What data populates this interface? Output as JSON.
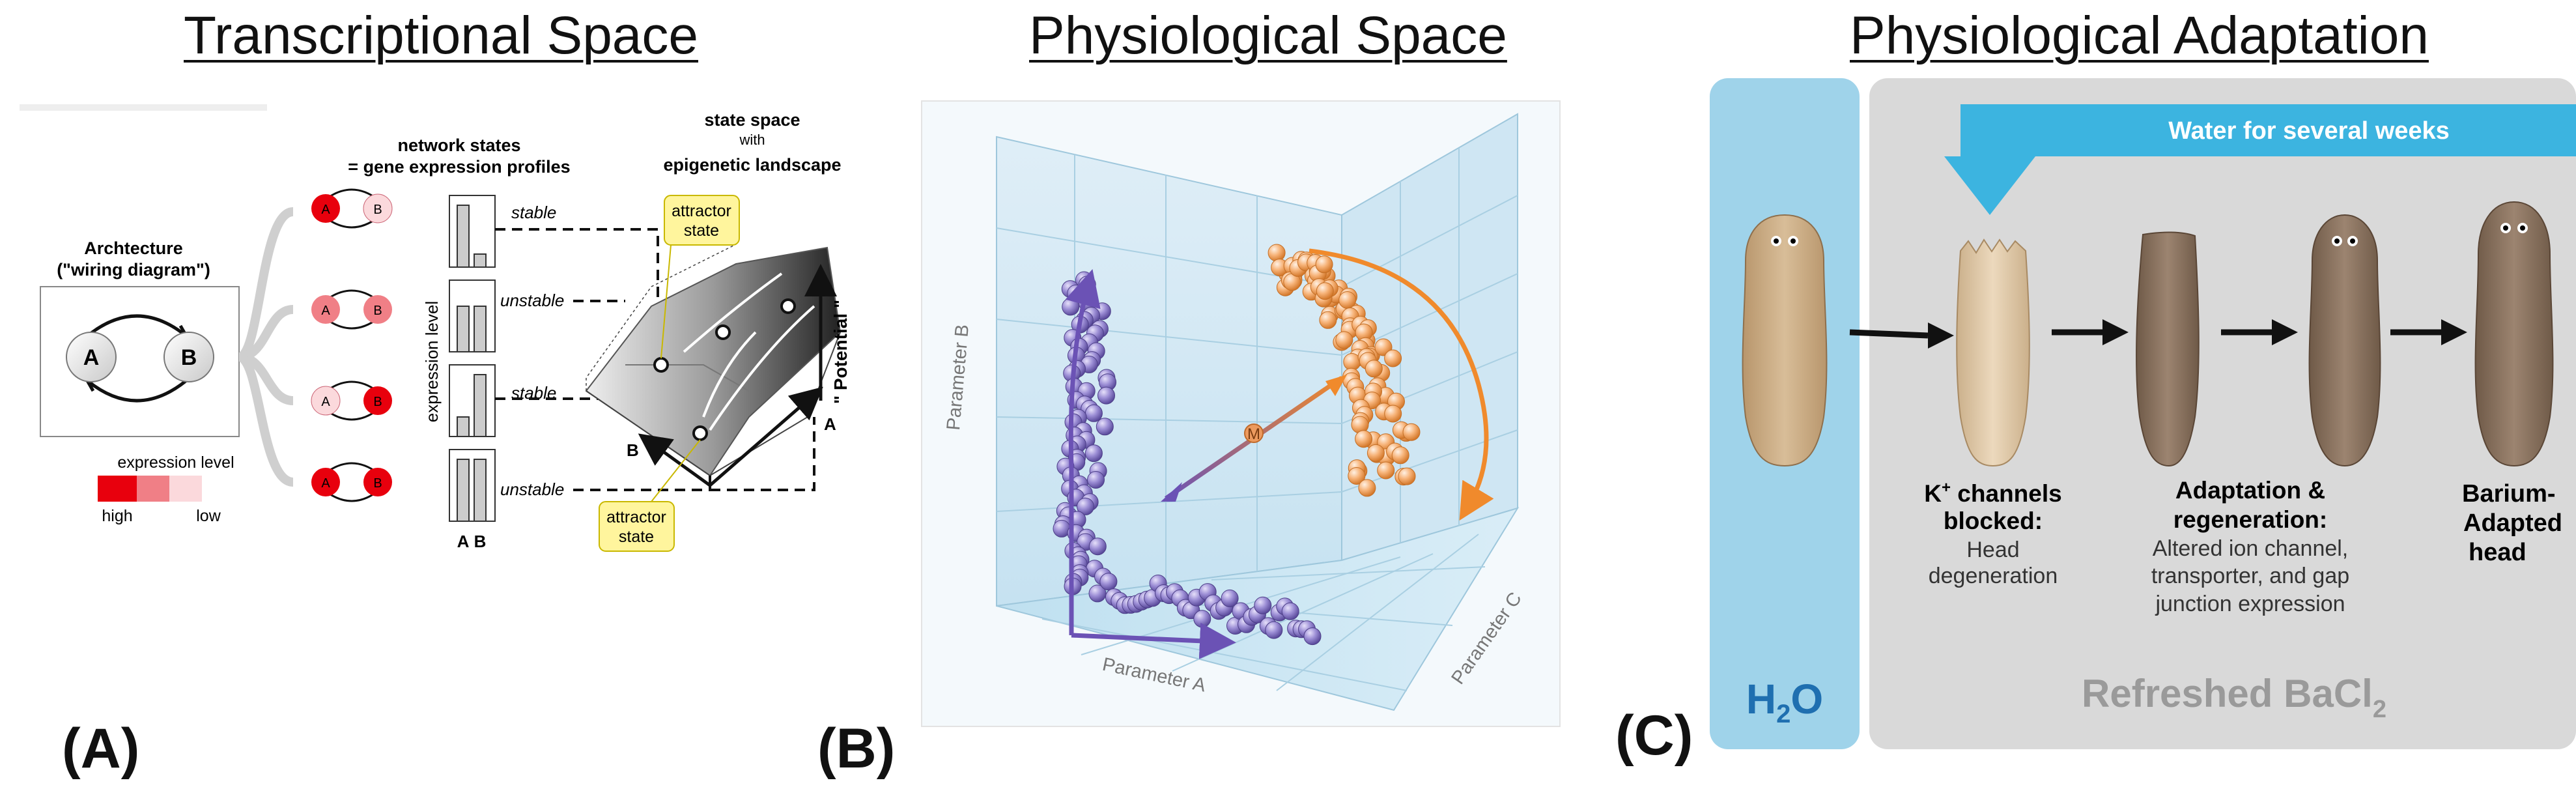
{
  "panel_a": {
    "title": "Transcriptional Space",
    "letter": "(A)",
    "architecture_label_1": "Archtecture",
    "architecture_label_2": "(\"wiring diagram\")",
    "node_a": "A",
    "node_b": "B",
    "network_states_1": "network states",
    "network_states_2": "= gene expression profiles",
    "state_space_1": "state space",
    "state_space_2": "with",
    "state_space_3": "epigenetic landscape",
    "expression_axis": "expression  level",
    "bar_axis_a": "A",
    "bar_axis_b": "B",
    "stability": [
      "stable",
      "unstable",
      "stable",
      "unstable"
    ],
    "attractor_1": "attractor",
    "attractor_2": "state",
    "potential_label": "\" Potential \"",
    "axis_a": "A",
    "axis_b": "B",
    "legend_title": "expression level",
    "legend_high": "high",
    "legend_low": "low",
    "colors": {
      "high": "#e8000d",
      "mid": "#f07f86",
      "low": "#fbd9dc",
      "attractor_box": "#fff59d"
    }
  },
  "panel_b": {
    "title": "Physiological Space",
    "letter": "(B)",
    "axis_a": "Parameter A",
    "axis_b": "Parameter B",
    "axis_c": "Parameter C",
    "center_label": "M",
    "colors": {
      "purple": "#8a7cc4",
      "orange": "#f6b98c",
      "purple_arrow": "#6b52b5",
      "orange_arrow": "#f08a2c"
    }
  },
  "panel_c": {
    "title": "Physiological Adaptation",
    "letter": "(C)",
    "banner": "Water for several weeks",
    "water_label": "H",
    "water_sub": "2",
    "water_tail": "O",
    "bacl_label": "Refreshed BaCl",
    "bacl_sub": "2",
    "step1_1": "K",
    "step1_sup": "+",
    "step1_2": " channels",
    "step1_3": "blocked:",
    "step1_4": "Head",
    "step1_5": "degeneration",
    "step2_1": "Adaptation &",
    "step2_2": "regeneration:",
    "step2_3": "Altered ion channel,",
    "step2_4": "transporter, and gap",
    "step2_5": "junction expression",
    "step3_1": "Barium-",
    "step3_2": "Adapted",
    "step3_3": "head",
    "colors": {
      "water_panel": "#9fd3ea",
      "bacl_panel": "#d9d9d9",
      "banner": "#3cb4e0",
      "worm_light": "#c7a880",
      "worm_dark": "#8a7260"
    }
  }
}
